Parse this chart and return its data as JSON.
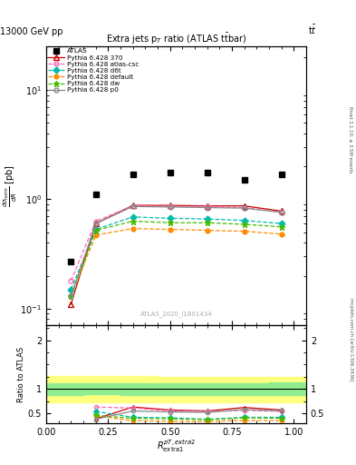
{
  "title": "Extra jets p_{T} ratio (ATLAS #bar{t}t)",
  "title_display": "Extra jets p$_T$ ratio (ATLAS t$\\bar{t}$bar)",
  "header_left": "13000 GeV pp",
  "header_right": "t$\\bar{t}$",
  "watermark": "ATLAS_2020_I1801434",
  "right_label1": "Rivet 3.1.10, ≥ 3.5M events",
  "right_label2": "mcplots.cern.ch [arXiv:1306.3436]",
  "x_vals": [
    0.1,
    0.2,
    0.35,
    0.5,
    0.65,
    0.8,
    0.95
  ],
  "atlas_y": [
    0.27,
    1.1,
    1.7,
    1.75,
    1.75,
    1.5,
    1.7
  ],
  "py370_y": [
    0.11,
    0.6,
    0.88,
    0.88,
    0.87,
    0.87,
    0.78
  ],
  "pyatlascac_y": [
    0.18,
    0.63,
    0.87,
    0.86,
    0.86,
    0.84,
    0.76
  ],
  "pyd6t_y": [
    0.15,
    0.53,
    0.69,
    0.67,
    0.66,
    0.64,
    0.6
  ],
  "pydefault_y": [
    0.13,
    0.47,
    0.54,
    0.53,
    0.52,
    0.51,
    0.48
  ],
  "pydw_y": [
    0.13,
    0.52,
    0.63,
    0.61,
    0.61,
    0.59,
    0.56
  ],
  "pyp0_y": [
    0.13,
    0.6,
    0.86,
    0.85,
    0.84,
    0.83,
    0.76
  ],
  "ratio_x": [
    0.2,
    0.35,
    0.5,
    0.65,
    0.8,
    0.95
  ],
  "ratio_py370": [
    0.39,
    0.63,
    0.57,
    0.55,
    0.62,
    0.57
  ],
  "ratio_atlascac": [
    0.63,
    0.61,
    0.55,
    0.54,
    0.56,
    0.54
  ],
  "ratio_d6t": [
    0.54,
    0.42,
    0.41,
    0.38,
    0.42,
    0.42
  ],
  "ratio_default": [
    0.45,
    0.35,
    0.34,
    0.33,
    0.36,
    0.35
  ],
  "ratio_dw": [
    0.46,
    0.4,
    0.39,
    0.37,
    0.41,
    0.4
  ],
  "ratio_p0": [
    0.38,
    0.55,
    0.53,
    0.52,
    0.58,
    0.55
  ],
  "band_x": [
    0.0,
    0.15,
    0.3,
    0.45,
    0.6,
    0.75,
    0.9,
    1.05
  ],
  "band_green_lo": [
    0.88,
    0.89,
    0.88,
    0.88,
    0.88,
    0.88,
    0.87,
    0.87
  ],
  "band_green_hi": [
    1.12,
    1.11,
    1.12,
    1.12,
    1.12,
    1.12,
    1.13,
    1.13
  ],
  "band_yellow_lo": [
    0.72,
    0.73,
    0.73,
    0.73,
    0.73,
    0.73,
    0.72,
    0.72
  ],
  "band_yellow_hi": [
    1.27,
    1.26,
    1.26,
    1.25,
    1.24,
    1.24,
    1.24,
    1.24
  ],
  "colors": {
    "atlas": "#000000",
    "py370": "#cc0000",
    "atlascac": "#ff69b4",
    "d6t": "#00bbaa",
    "default": "#ff8c00",
    "dw": "#44bb00",
    "p0": "#888888"
  },
  "ylim_main": [
    0.07,
    25
  ],
  "ylim_ratio": [
    0.3,
    2.3
  ],
  "xlim": [
    0.0,
    1.05
  ]
}
